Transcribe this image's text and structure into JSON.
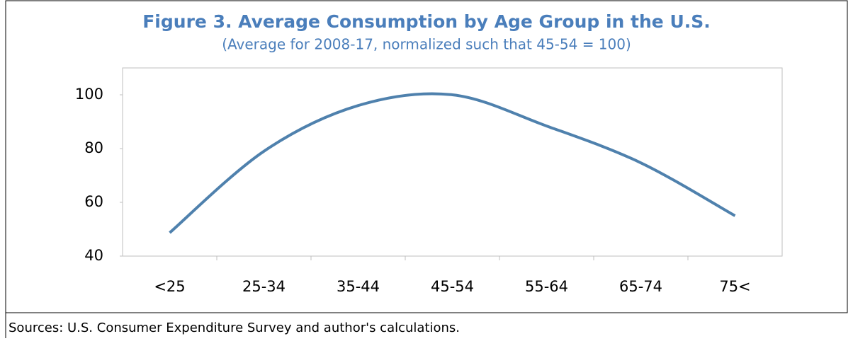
{
  "chart_data": {
    "type": "line",
    "title": "Figure 3. Average Consumption by Age Group in the U.S.",
    "subtitle": "(Average for 2008-17, normalized such that 45-54 = 100)",
    "categories": [
      "<25",
      "25-34",
      "35-44",
      "45-54",
      "55-64",
      "65-74",
      "75<"
    ],
    "series": [
      {
        "name": "Average consumption",
        "color": "#4f81ad",
        "values": [
          48.7,
          79,
          96,
          100,
          88.4,
          74.7,
          55
        ]
      }
    ],
    "ylim": [
      40,
      110
    ],
    "yticks": [
      40,
      60,
      80,
      100
    ],
    "grid": false,
    "source": "Sources: U.S. Consumer Expenditure Survey and author's calculations."
  }
}
